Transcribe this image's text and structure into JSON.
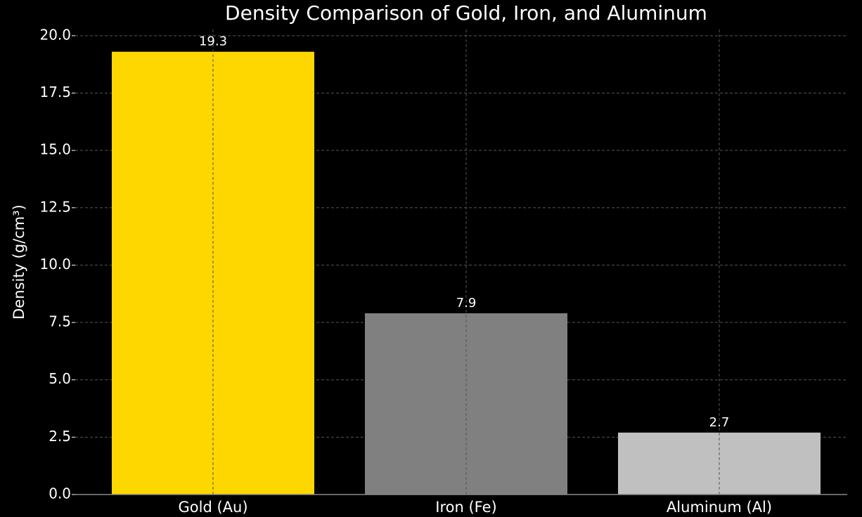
{
  "chart_data": {
    "type": "bar",
    "title": "Density Comparison of Gold, Iron, and Aluminum",
    "y_label": "Density (g/cm³)",
    "categories": [
      "Gold (Au)",
      "Iron (Fe)",
      "Aluminum (Al)"
    ],
    "values": [
      19.3,
      7.9,
      2.7
    ],
    "colors": [
      "#ffd700",
      "#808080",
      "#c0c0c0"
    ],
    "ylim": [
      0,
      20.27
    ],
    "yticks": [
      {
        "value": 0,
        "label": "0.0"
      },
      2.5,
      {
        "value": 5,
        "label": "5.0"
      },
      7.5,
      {
        "value": 10,
        "label": "10.0"
      },
      12.5,
      {
        "value": 15,
        "label": "15.0"
      },
      17.5,
      {
        "value": 20,
        "label": "20.0"
      }
    ],
    "grid": true
  }
}
